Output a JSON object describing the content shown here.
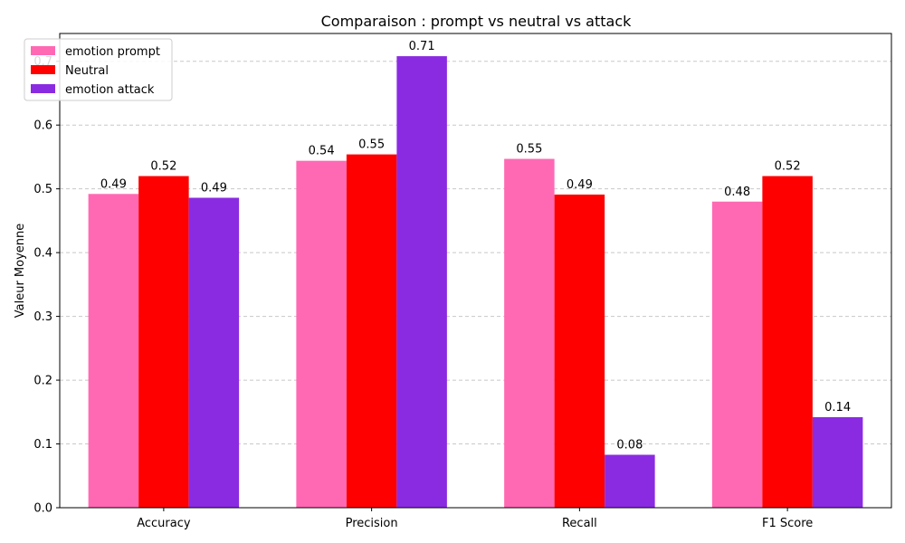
{
  "chart_data": {
    "type": "bar",
    "title": "Comparaison : prompt vs neutral vs attack",
    "xlabel": "",
    "ylabel": "Valeur Moyenne",
    "categories": [
      "Accuracy",
      "Precision",
      "Recall",
      "F1 Score"
    ],
    "series": [
      {
        "name": "emotion prompt",
        "color": "#ff69b4",
        "values": [
          0.492,
          0.544,
          0.547,
          0.48
        ],
        "labels": [
          "0.49",
          "0.54",
          "0.55",
          "0.48"
        ]
      },
      {
        "name": "Neutral",
        "color": "#ff0000",
        "values": [
          0.52,
          0.554,
          0.491,
          0.52
        ],
        "labels": [
          "0.52",
          "0.55",
          "0.49",
          "0.52"
        ]
      },
      {
        "name": "emotion attack",
        "color": "#8a2be2",
        "values": [
          0.486,
          0.708,
          0.083,
          0.142
        ],
        "labels": [
          "0.49",
          "0.71",
          "0.08",
          "0.14"
        ]
      }
    ],
    "ylim": [
      0,
      0.7436
    ],
    "yticks": [
      "0.0",
      "0.1",
      "0.2",
      "0.3",
      "0.4",
      "0.5",
      "0.6",
      "0.7"
    ],
    "grid": "y-dashed",
    "legend_position": "top-left"
  }
}
